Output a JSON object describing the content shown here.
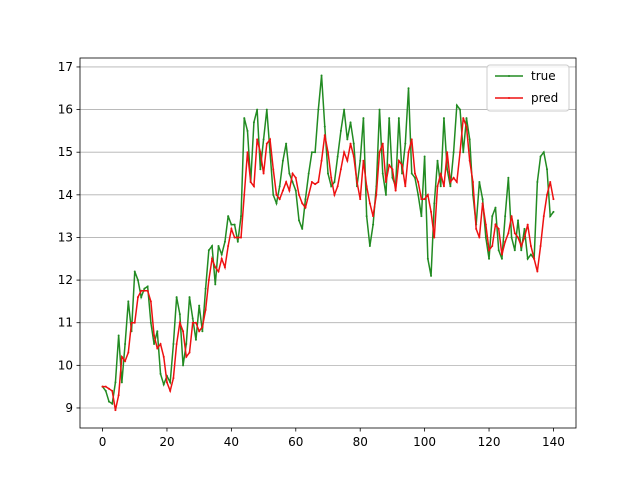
{
  "chart_data": {
    "type": "line",
    "x": [
      0,
      1,
      2,
      3,
      4,
      5,
      6,
      7,
      8,
      9,
      10,
      11,
      12,
      13,
      14,
      15,
      16,
      17,
      18,
      19,
      20,
      21,
      22,
      23,
      24,
      25,
      26,
      27,
      28,
      29,
      30,
      31,
      32,
      33,
      34,
      35,
      36,
      37,
      38,
      39,
      40,
      41,
      42,
      43,
      44,
      45,
      46,
      47,
      48,
      49,
      50,
      51,
      52,
      53,
      54,
      55,
      56,
      57,
      58,
      59,
      60,
      61,
      62,
      63,
      64,
      65,
      66,
      67,
      68,
      69,
      70,
      71,
      72,
      73,
      74,
      75,
      76,
      77,
      78,
      79,
      80,
      81,
      82,
      83,
      84,
      85,
      86,
      87,
      88,
      89,
      90,
      91,
      92,
      93,
      94,
      95,
      96,
      97,
      98,
      99,
      100,
      101,
      102,
      103,
      104,
      105,
      106,
      107,
      108,
      109,
      110,
      111,
      112,
      113,
      114,
      115,
      116,
      117,
      118,
      119,
      120,
      121,
      122,
      123,
      124,
      125,
      126,
      127,
      128,
      129,
      130,
      131,
      132,
      133,
      134,
      135,
      136,
      137,
      138,
      139,
      140
    ],
    "series": [
      {
        "name": "true",
        "color": "#228b22",
        "values": [
          9.5,
          9.4,
          9.15,
          9.1,
          9.6,
          10.7,
          9.6,
          10.5,
          11.5,
          10.8,
          12.2,
          12.0,
          11.6,
          11.8,
          11.85,
          11.0,
          10.5,
          10.8,
          9.8,
          9.55,
          9.75,
          9.6,
          10.5,
          11.6,
          11.2,
          10.0,
          10.5,
          11.6,
          11.1,
          10.6,
          11.4,
          10.8,
          11.8,
          12.7,
          12.8,
          11.9,
          12.8,
          12.6,
          12.9,
          13.5,
          13.3,
          13.3,
          12.9,
          13.5,
          15.8,
          15.5,
          14.3,
          15.7,
          16.0,
          14.6,
          15.3,
          16.0,
          15.0,
          14.0,
          13.8,
          14.2,
          14.8,
          15.2,
          14.5,
          14.3,
          14.1,
          13.4,
          13.2,
          13.9,
          14.5,
          15.0,
          15.0,
          16.0,
          16.8,
          15.6,
          14.5,
          14.2,
          14.3,
          14.9,
          15.5,
          16.0,
          15.3,
          15.7,
          15.2,
          14.2,
          14.8,
          15.8,
          13.5,
          12.8,
          13.3,
          14.2,
          16.0,
          14.5,
          14.0,
          15.8,
          14.4,
          14.2,
          15.8,
          14.5,
          15.2,
          16.5,
          14.5,
          14.4,
          14.0,
          13.5,
          14.9,
          12.5,
          12.1,
          13.8,
          14.8,
          14.2,
          15.8,
          14.6,
          14.2,
          15.0,
          16.1,
          16.0,
          15.0,
          15.8,
          15.3,
          14.0,
          13.3,
          14.3,
          13.9,
          13.0,
          12.5,
          13.5,
          13.7,
          12.7,
          12.5,
          13.5,
          14.4,
          13.0,
          12.7,
          13.4,
          12.7,
          13.2,
          12.5,
          12.6,
          12.5,
          14.3,
          14.9,
          15.0,
          14.6,
          13.5,
          13.6
        ]
      },
      {
        "name": "pred",
        "color": "#ee1111",
        "values": [
          9.5,
          9.5,
          9.45,
          9.4,
          8.95,
          9.3,
          10.2,
          10.1,
          10.3,
          11.0,
          11.0,
          11.6,
          11.75,
          11.75,
          11.75,
          11.5,
          10.7,
          10.4,
          10.5,
          10.2,
          9.6,
          9.4,
          9.7,
          10.5,
          11.0,
          10.8,
          10.2,
          10.3,
          11.0,
          11.0,
          10.8,
          10.9,
          11.3,
          12.0,
          12.5,
          12.3,
          12.2,
          12.5,
          12.3,
          12.8,
          13.2,
          13.0,
          13.0,
          13.0,
          14.0,
          15.0,
          14.3,
          14.2,
          15.3,
          15.0,
          14.5,
          15.2,
          15.3,
          14.6,
          14.0,
          13.9,
          14.1,
          14.3,
          14.1,
          14.5,
          14.4,
          14.0,
          13.8,
          13.7,
          14.0,
          14.3,
          14.25,
          14.3,
          14.8,
          15.4,
          15.0,
          14.4,
          14.0,
          14.2,
          14.6,
          15.0,
          14.8,
          15.2,
          14.9,
          14.3,
          13.9,
          14.8,
          14.2,
          13.8,
          13.5,
          14.0,
          15.0,
          15.2,
          14.3,
          14.7,
          14.6,
          14.1,
          14.8,
          14.7,
          14.2,
          15.0,
          15.3,
          14.5,
          14.3,
          13.9,
          13.9,
          14.0,
          13.6,
          13.0,
          14.2,
          14.5,
          14.2,
          15.0,
          14.3,
          14.4,
          14.3,
          15.0,
          15.8,
          15.6,
          14.8,
          14.3,
          13.2,
          13.0,
          13.8,
          13.3,
          12.7,
          12.8,
          13.3,
          13.2,
          12.6,
          12.9,
          13.1,
          13.5,
          13.1,
          13.0,
          12.8,
          13.0,
          13.3,
          12.8,
          12.5,
          12.2,
          12.8,
          13.5,
          14.0,
          14.3,
          13.9
        ]
      }
    ],
    "xlim": [
      -7,
      147
    ],
    "ylim": [
      8.53,
      17.21
    ],
    "xticks": [
      0,
      20,
      40,
      60,
      80,
      100,
      120,
      140
    ],
    "yticks": [
      9,
      10,
      11,
      12,
      13,
      14,
      15,
      16,
      17
    ],
    "grid": "y",
    "legend": "upper right"
  }
}
